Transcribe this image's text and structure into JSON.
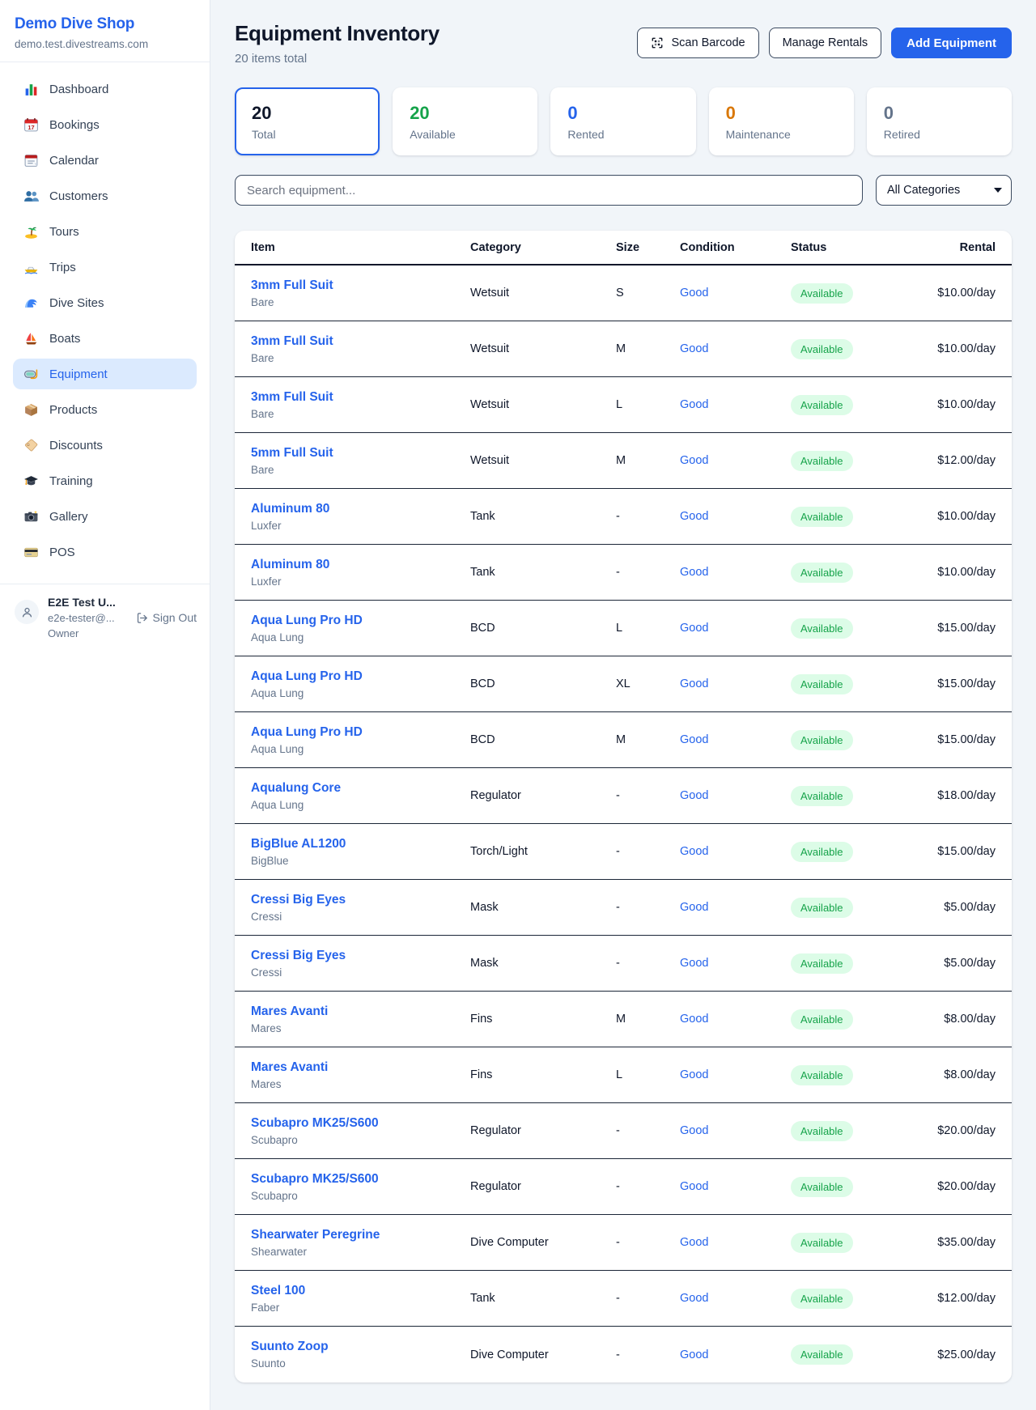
{
  "sidebar": {
    "brand": "Demo Dive Shop",
    "domain": "demo.test.divestreams.com",
    "items": [
      {
        "label": "Dashboard",
        "icon": "bar-chart",
        "active": false
      },
      {
        "label": "Bookings",
        "icon": "calendar-date",
        "active": false
      },
      {
        "label": "Calendar",
        "icon": "calendar",
        "active": false
      },
      {
        "label": "Customers",
        "icon": "users",
        "active": false
      },
      {
        "label": "Tours",
        "icon": "island",
        "active": false
      },
      {
        "label": "Trips",
        "icon": "speedboat",
        "active": false
      },
      {
        "label": "Dive Sites",
        "icon": "wave",
        "active": false
      },
      {
        "label": "Boats",
        "icon": "sailboat",
        "active": false
      },
      {
        "label": "Equipment",
        "icon": "dive-mask",
        "active": true
      },
      {
        "label": "Products",
        "icon": "package",
        "active": false
      },
      {
        "label": "Discounts",
        "icon": "tag",
        "active": false
      },
      {
        "label": "Training",
        "icon": "graduation-cap",
        "active": false
      },
      {
        "label": "Gallery",
        "icon": "camera",
        "active": false
      },
      {
        "label": "POS",
        "icon": "credit-card",
        "active": false
      }
    ],
    "user": {
      "name": "E2E Test U...",
      "email": "e2e-tester@...",
      "role": "Owner",
      "sign_out": "Sign Out"
    }
  },
  "header": {
    "title": "Equipment Inventory",
    "subtitle": "20 items total",
    "scan_button": "Scan Barcode",
    "manage_button": "Manage Rentals",
    "add_button": "Add Equipment"
  },
  "stats": [
    {
      "value": "20",
      "label": "Total",
      "color": "#0f172a",
      "selected": true
    },
    {
      "value": "20",
      "label": "Available",
      "color": "#16a34a",
      "selected": false
    },
    {
      "value": "0",
      "label": "Rented",
      "color": "#2563eb",
      "selected": false
    },
    {
      "value": "0",
      "label": "Maintenance",
      "color": "#d97706",
      "selected": false
    },
    {
      "value": "0",
      "label": "Retired",
      "color": "#64748b",
      "selected": false
    }
  ],
  "filters": {
    "search_placeholder": "Search equipment...",
    "category": "All Categories"
  },
  "table": {
    "headers": {
      "item": "Item",
      "category": "Category",
      "size": "Size",
      "condition": "Condition",
      "status": "Status",
      "rental": "Rental"
    },
    "rows": [
      {
        "name": "3mm Full Suit",
        "brand": "Bare",
        "category": "Wetsuit",
        "size": "S",
        "condition": "Good",
        "status": "Available",
        "rental": "$10.00/day"
      },
      {
        "name": "3mm Full Suit",
        "brand": "Bare",
        "category": "Wetsuit",
        "size": "M",
        "condition": "Good",
        "status": "Available",
        "rental": "$10.00/day"
      },
      {
        "name": "3mm Full Suit",
        "brand": "Bare",
        "category": "Wetsuit",
        "size": "L",
        "condition": "Good",
        "status": "Available",
        "rental": "$10.00/day"
      },
      {
        "name": "5mm Full Suit",
        "brand": "Bare",
        "category": "Wetsuit",
        "size": "M",
        "condition": "Good",
        "status": "Available",
        "rental": "$12.00/day"
      },
      {
        "name": "Aluminum 80",
        "brand": "Luxfer",
        "category": "Tank",
        "size": "-",
        "condition": "Good",
        "status": "Available",
        "rental": "$10.00/day"
      },
      {
        "name": "Aluminum 80",
        "brand": "Luxfer",
        "category": "Tank",
        "size": "-",
        "condition": "Good",
        "status": "Available",
        "rental": "$10.00/day"
      },
      {
        "name": "Aqua Lung Pro HD",
        "brand": "Aqua Lung",
        "category": "BCD",
        "size": "L",
        "condition": "Good",
        "status": "Available",
        "rental": "$15.00/day"
      },
      {
        "name": "Aqua Lung Pro HD",
        "brand": "Aqua Lung",
        "category": "BCD",
        "size": "XL",
        "condition": "Good",
        "status": "Available",
        "rental": "$15.00/day"
      },
      {
        "name": "Aqua Lung Pro HD",
        "brand": "Aqua Lung",
        "category": "BCD",
        "size": "M",
        "condition": "Good",
        "status": "Available",
        "rental": "$15.00/day"
      },
      {
        "name": "Aqualung Core",
        "brand": "Aqua Lung",
        "category": "Regulator",
        "size": "-",
        "condition": "Good",
        "status": "Available",
        "rental": "$18.00/day"
      },
      {
        "name": "BigBlue AL1200",
        "brand": "BigBlue",
        "category": "Torch/Light",
        "size": "-",
        "condition": "Good",
        "status": "Available",
        "rental": "$15.00/day"
      },
      {
        "name": "Cressi Big Eyes",
        "brand": "Cressi",
        "category": "Mask",
        "size": "-",
        "condition": "Good",
        "status": "Available",
        "rental": "$5.00/day"
      },
      {
        "name": "Cressi Big Eyes",
        "brand": "Cressi",
        "category": "Mask",
        "size": "-",
        "condition": "Good",
        "status": "Available",
        "rental": "$5.00/day"
      },
      {
        "name": "Mares Avanti",
        "brand": "Mares",
        "category": "Fins",
        "size": "M",
        "condition": "Good",
        "status": "Available",
        "rental": "$8.00/day"
      },
      {
        "name": "Mares Avanti",
        "brand": "Mares",
        "category": "Fins",
        "size": "L",
        "condition": "Good",
        "status": "Available",
        "rental": "$8.00/day"
      },
      {
        "name": "Scubapro MK25/S600",
        "brand": "Scubapro",
        "category": "Regulator",
        "size": "-",
        "condition": "Good",
        "status": "Available",
        "rental": "$20.00/day"
      },
      {
        "name": "Scubapro MK25/S600",
        "brand": "Scubapro",
        "category": "Regulator",
        "size": "-",
        "condition": "Good",
        "status": "Available",
        "rental": "$20.00/day"
      },
      {
        "name": "Shearwater Peregrine",
        "brand": "Shearwater",
        "category": "Dive Computer",
        "size": "-",
        "condition": "Good",
        "status": "Available",
        "rental": "$35.00/day"
      },
      {
        "name": "Steel 100",
        "brand": "Faber",
        "category": "Tank",
        "size": "-",
        "condition": "Good",
        "status": "Available",
        "rental": "$12.00/day"
      },
      {
        "name": "Suunto Zoop",
        "brand": "Suunto",
        "category": "Dive Computer",
        "size": "-",
        "condition": "Good",
        "status": "Available",
        "rental": "$25.00/day"
      }
    ]
  }
}
